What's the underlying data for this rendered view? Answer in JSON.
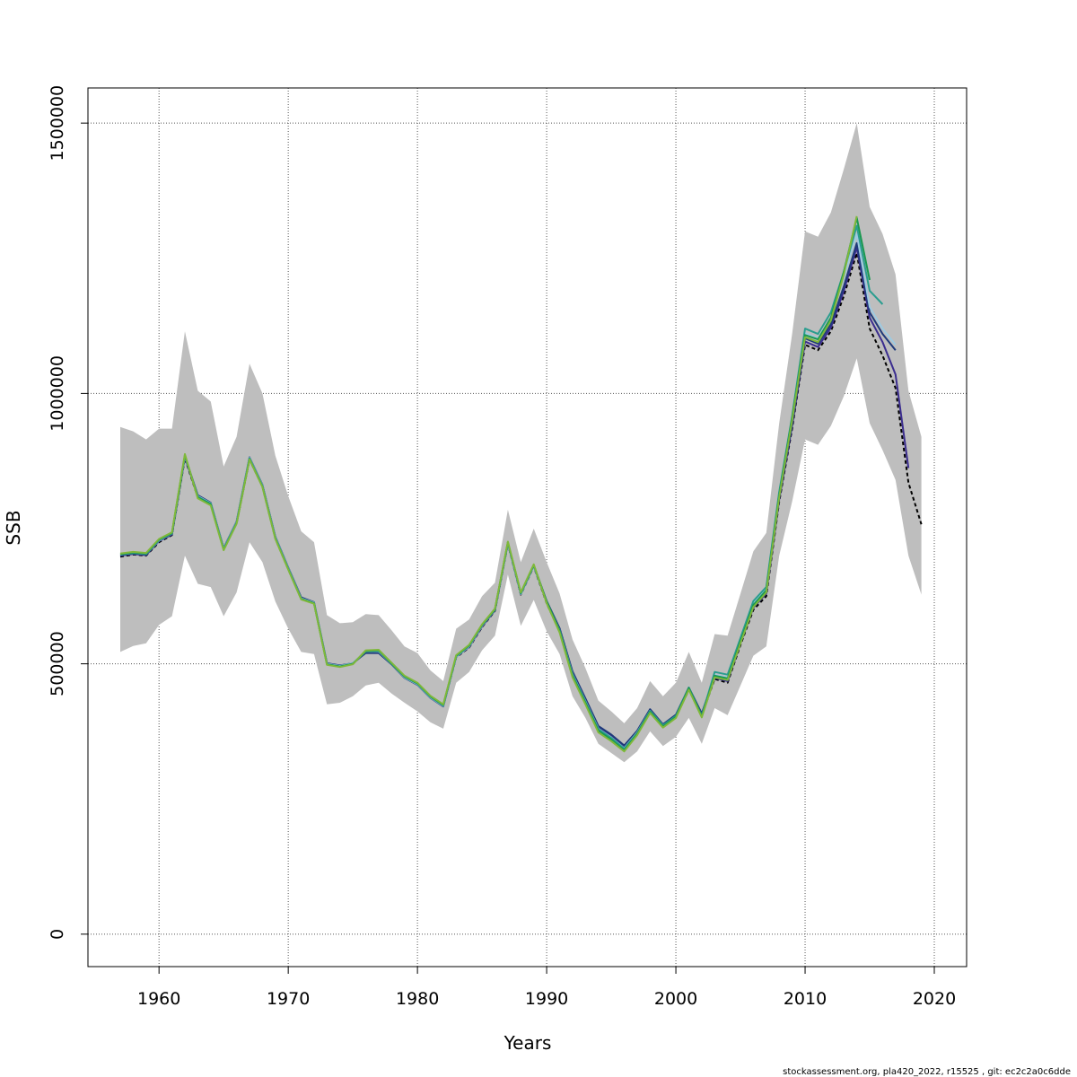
{
  "chart_data": {
    "type": "line",
    "title": "",
    "xlabel": "Years",
    "ylabel": "SSB",
    "xlim": [
      1954.5,
      2022.5
    ],
    "ylim": [
      -60000,
      1565000
    ],
    "x_ticks": [
      1960,
      1970,
      1980,
      1990,
      2000,
      2010,
      2020
    ],
    "y_ticks": [
      0,
      500000,
      1000000,
      1500000
    ],
    "grid": true,
    "legend": "none",
    "footer": "stockassessment.org, pla420_2022, r15525 , git: ec2c2a0c6dde",
    "colors": {
      "band": "#bebebe",
      "black": "#000000",
      "navy": "#1f3a7a",
      "purple": "#3b2d8f",
      "teal": "#2a9d8f",
      "lightblue": "#9ecae1",
      "green": "#1a9850",
      "olive": "#7fb83a"
    },
    "confidence_band": {
      "x": [
        1957,
        1958,
        1959,
        1960,
        1961,
        1962,
        1963,
        1964,
        1965,
        1966,
        1967,
        1968,
        1969,
        1970,
        1971,
        1972,
        1973,
        1974,
        1975,
        1976,
        1977,
        1978,
        1979,
        1980,
        1981,
        1982,
        1983,
        1984,
        1985,
        1986,
        1987,
        1988,
        1989,
        1990,
        1991,
        1992,
        1993,
        1994,
        1995,
        1996,
        1997,
        1998,
        1999,
        2000,
        2001,
        2002,
        2003,
        2004,
        2005,
        2006,
        2007,
        2008,
        2009,
        2010,
        2011,
        2012,
        2013,
        2014,
        2015,
        2016,
        2017,
        2018,
        2019
      ],
      "upper": [
        938000,
        930000,
        915000,
        935000,
        935000,
        1115000,
        1005000,
        985000,
        865000,
        920000,
        1055000,
        1000000,
        885000,
        810000,
        745000,
        725000,
        590000,
        575000,
        577000,
        592000,
        590000,
        562000,
        532000,
        520000,
        488000,
        468000,
        565000,
        582000,
        625000,
        650000,
        785000,
        688000,
        750000,
        688000,
        630000,
        545000,
        492000,
        432000,
        412000,
        390000,
        418000,
        468000,
        440000,
        465000,
        522000,
        465000,
        555000,
        552000,
        630000,
        708000,
        742000,
        945000,
        1110000,
        1300000,
        1290000,
        1335000,
        1415000,
        1500000,
        1345000,
        1295000,
        1220000,
        1005000,
        920000
      ],
      "lower": [
        522000,
        533000,
        538000,
        572000,
        588000,
        700000,
        648000,
        642000,
        588000,
        632000,
        725000,
        688000,
        615000,
        565000,
        522000,
        518000,
        425000,
        428000,
        440000,
        460000,
        465000,
        445000,
        428000,
        412000,
        392000,
        380000,
        465000,
        485000,
        525000,
        552000,
        665000,
        570000,
        618000,
        560000,
        518000,
        440000,
        400000,
        352000,
        335000,
        318000,
        338000,
        375000,
        348000,
        365000,
        400000,
        352000,
        418000,
        405000,
        460000,
        515000,
        532000,
        700000,
        800000,
        915000,
        905000,
        940000,
        995000,
        1065000,
        945000,
        895000,
        840000,
        700000,
        628000
      ]
    },
    "series": [
      {
        "color": "black",
        "dashed": true,
        "x": [
          1957,
          1958,
          1959,
          1960,
          1961,
          1962,
          1963,
          1964,
          1965,
          1966,
          1967,
          1968,
          1969,
          1970,
          1971,
          1972,
          1973,
          1974,
          1975,
          1976,
          1977,
          1978,
          1979,
          1980,
          1981,
          1982,
          1983,
          1984,
          1985,
          1986,
          1987,
          1988,
          1989,
          1990,
          1991,
          1992,
          1993,
          1994,
          1995,
          1996,
          1997,
          1998,
          1999,
          2000,
          2001,
          2002,
          2003,
          2004,
          2005,
          2006,
          2007,
          2008,
          2009,
          2010,
          2011,
          2012,
          2013,
          2014,
          2015,
          2016,
          2017,
          2018,
          2019
        ],
        "values": [
          698000,
          702000,
          700000,
          725000,
          738000,
          880000,
          808000,
          795000,
          712000,
          760000,
          878000,
          828000,
          732000,
          675000,
          620000,
          612000,
          500000,
          495000,
          500000,
          522000,
          522000,
          500000,
          475000,
          462000,
          438000,
          422000,
          512000,
          530000,
          568000,
          598000,
          722000,
          628000,
          680000,
          612000,
          560000,
          480000,
          430000,
          378000,
          362000,
          342000,
          372000,
          412000,
          385000,
          402000,
          452000,
          405000,
          472000,
          465000,
          535000,
          600000,
          625000,
          800000,
          935000,
          1090000,
          1080000,
          1115000,
          1180000,
          1260000,
          1120000,
          1070000,
          1010000,
          835000,
          758000
        ]
      },
      {
        "color": "purple",
        "dashed": false,
        "x": [
          1957,
          1958,
          1959,
          1960,
          1961,
          1962,
          1963,
          1964,
          1965,
          1966,
          1967,
          1968,
          1969,
          1970,
          1971,
          1972,
          1973,
          1974,
          1975,
          1976,
          1977,
          1978,
          1979,
          1980,
          1981,
          1982,
          1983,
          1984,
          1985,
          1986,
          1987,
          1988,
          1989,
          1990,
          1991,
          1992,
          1993,
          1994,
          1995,
          1996,
          1997,
          1998,
          1999,
          2000,
          2001,
          2002,
          2003,
          2004,
          2005,
          2006,
          2007,
          2008,
          2009,
          2010,
          2011,
          2012,
          2013,
          2014,
          2015,
          2016,
          2017,
          2018
        ],
        "values": [
          700000,
          703000,
          701000,
          727000,
          739000,
          882000,
          810000,
          797000,
          713000,
          762000,
          880000,
          830000,
          734000,
          677000,
          622000,
          613000,
          500000,
          496000,
          500000,
          523000,
          523000,
          501000,
          476000,
          463000,
          439000,
          423000,
          513000,
          531000,
          569000,
          599000,
          723000,
          629000,
          681000,
          614000,
          563000,
          483000,
          433000,
          382000,
          366000,
          346000,
          374000,
          414000,
          386000,
          404000,
          454000,
          406000,
          474000,
          468000,
          538000,
          604000,
          630000,
          804000,
          940000,
          1096000,
          1086000,
          1122000,
          1190000,
          1270000,
          1140000,
          1095000,
          1035000,
          862000
        ]
      },
      {
        "color": "navy",
        "dashed": false,
        "x": [
          1957,
          1958,
          1959,
          1960,
          1961,
          1962,
          1963,
          1964,
          1965,
          1966,
          1967,
          1968,
          1969,
          1970,
          1971,
          1972,
          1973,
          1974,
          1975,
          1976,
          1977,
          1978,
          1979,
          1980,
          1981,
          1982,
          1983,
          1984,
          1985,
          1986,
          1987,
          1988,
          1989,
          1990,
          1991,
          1992,
          1993,
          1994,
          1995,
          1996,
          1997,
          1998,
          1999,
          2000,
          2001,
          2002,
          2003,
          2004,
          2005,
          2006,
          2007,
          2008,
          2009,
          2010,
          2011,
          2012,
          2013,
          2014,
          2015,
          2016,
          2017
        ],
        "values": [
          701000,
          704000,
          702000,
          728000,
          740000,
          884000,
          812000,
          798000,
          714000,
          763000,
          882000,
          831000,
          735000,
          678000,
          623000,
          614000,
          501000,
          497000,
          501000,
          520000,
          520000,
          499000,
          474000,
          461000,
          437000,
          421000,
          514000,
          533000,
          571000,
          601000,
          724000,
          630000,
          682000,
          616000,
          566000,
          486000,
          436000,
          385000,
          369000,
          349000,
          376000,
          416000,
          388000,
          406000,
          456000,
          408000,
          477000,
          471000,
          541000,
          607000,
          634000,
          808000,
          945000,
          1102000,
          1092000,
          1128000,
          1198000,
          1278000,
          1150000,
          1110000,
          1080000
        ]
      },
      {
        "color": "lightblue",
        "dashed": false,
        "x": [
          1957,
          1958,
          1959,
          1960,
          1961,
          1962,
          1963,
          1964,
          1965,
          1966,
          1967,
          1968,
          1969,
          1970,
          1971,
          1972,
          1973,
          1974,
          1975,
          1976,
          1977,
          1978,
          1979,
          1980,
          1981,
          1982,
          1983,
          1984,
          1985,
          1986,
          1987,
          1988,
          1989,
          1990,
          1991,
          1992,
          1993,
          1994,
          1995,
          1996,
          1997,
          1998,
          1999,
          2000,
          2001,
          2002,
          2003,
          2004,
          2005,
          2006,
          2007,
          2008,
          2009,
          2010,
          2011,
          2012,
          2013,
          2014,
          2015,
          2016,
          2017
        ],
        "values": [
          702000,
          705000,
          703000,
          728000,
          741000,
          884000,
          810000,
          797000,
          713000,
          762000,
          881000,
          830000,
          734000,
          677000,
          621000,
          613000,
          500000,
          496000,
          501000,
          523000,
          523000,
          500000,
          475000,
          462000,
          438000,
          422000,
          513000,
          532000,
          570000,
          600000,
          723000,
          629000,
          681000,
          614000,
          562000,
          481000,
          431000,
          380000,
          364000,
          344000,
          373000,
          413000,
          386000,
          403000,
          453000,
          404000,
          480000,
          475000,
          545000,
          612000,
          638000,
          815000,
          952000,
          1112000,
          1102000,
          1140000,
          1215000,
          1295000,
          1160000,
          1120000,
          1090000
        ]
      },
      {
        "color": "teal",
        "dashed": false,
        "x": [
          1957,
          1958,
          1959,
          1960,
          1961,
          1962,
          1963,
          1964,
          1965,
          1966,
          1967,
          1968,
          1969,
          1970,
          1971,
          1972,
          1973,
          1974,
          1975,
          1976,
          1977,
          1978,
          1979,
          1980,
          1981,
          1982,
          1983,
          1984,
          1985,
          1986,
          1987,
          1988,
          1989,
          1990,
          1991,
          1992,
          1993,
          1994,
          1995,
          1996,
          1997,
          1998,
          1999,
          2000,
          2001,
          2002,
          2003,
          2004,
          2005,
          2006,
          2007,
          2008,
          2009,
          2010,
          2011,
          2012,
          2013,
          2014,
          2015,
          2016
        ],
        "values": [
          702000,
          705000,
          703000,
          729000,
          741000,
          885000,
          809000,
          796000,
          712000,
          761000,
          880000,
          829000,
          733000,
          676000,
          620000,
          612000,
          499000,
          495000,
          500000,
          523000,
          524000,
          500000,
          476000,
          463000,
          439000,
          423000,
          514000,
          533000,
          571000,
          600000,
          724000,
          630000,
          682000,
          614000,
          562000,
          480000,
          430000,
          379000,
          363000,
          343000,
          372000,
          413000,
          386000,
          404000,
          456000,
          404000,
          485000,
          480000,
          548000,
          616000,
          642000,
          818000,
          958000,
          1120000,
          1110000,
          1150000,
          1225000,
          1310000,
          1190000,
          1165000
        ]
      },
      {
        "color": "green",
        "dashed": false,
        "x": [
          1957,
          1958,
          1959,
          1960,
          1961,
          1962,
          1963,
          1964,
          1965,
          1966,
          1967,
          1968,
          1969,
          1970,
          1971,
          1972,
          1973,
          1974,
          1975,
          1976,
          1977,
          1978,
          1979,
          1980,
          1981,
          1982,
          1983,
          1984,
          1985,
          1986,
          1987,
          1988,
          1989,
          1990,
          1991,
          1992,
          1993,
          1994,
          1995,
          1996,
          1997,
          1998,
          1999,
          2000,
          2001,
          2002,
          2003,
          2004,
          2005,
          2006,
          2007,
          2008,
          2009,
          2010,
          2011,
          2012,
          2013,
          2014,
          2015
        ],
        "values": [
          703000,
          706000,
          704000,
          730000,
          742000,
          886000,
          808000,
          795000,
          711000,
          760000,
          879000,
          828000,
          732000,
          675000,
          620000,
          612000,
          499000,
          495000,
          500000,
          524000,
          525000,
          501000,
          477000,
          464000,
          440000,
          424000,
          515000,
          534000,
          572000,
          601000,
          725000,
          631000,
          683000,
          615000,
          561000,
          478000,
          428000,
          376000,
          360000,
          340000,
          370000,
          411000,
          384000,
          402000,
          455000,
          403000,
          478000,
          473000,
          542000,
          609000,
          636000,
          812000,
          955000,
          1108000,
          1100000,
          1140000,
          1225000,
          1325000,
          1210000
        ]
      },
      {
        "color": "olive",
        "dashed": false,
        "x": [
          1957,
          1958,
          1959,
          1960,
          1961,
          1962,
          1963,
          1964,
          1965,
          1966,
          1967,
          1968,
          1969,
          1970,
          1971,
          1972,
          1973,
          1974,
          1975,
          1976,
          1977,
          1978,
          1979,
          1980,
          1981,
          1982,
          1983,
          1984,
          1985,
          1986,
          1987,
          1988,
          1989,
          1990,
          1991,
          1992,
          1993,
          1994,
          1995,
          1996,
          1997,
          1998,
          1999,
          2000,
          2001,
          2002,
          2003,
          2004,
          2005,
          2006,
          2007,
          2008,
          2009,
          2010,
          2011,
          2012,
          2013,
          2014
        ],
        "values": [
          704000,
          707000,
          705000,
          731000,
          743000,
          888000,
          806000,
          793000,
          710000,
          759000,
          878000,
          827000,
          731000,
          674000,
          619000,
          611000,
          498000,
          494000,
          499000,
          525000,
          526000,
          502000,
          478000,
          465000,
          441000,
          425000,
          516000,
          535000,
          573000,
          602000,
          726000,
          632000,
          684000,
          612000,
          558000,
          475000,
          425000,
          373000,
          357000,
          338000,
          368000,
          409000,
          382000,
          400000,
          452000,
          401000,
          475000,
          470000,
          538000,
          605000,
          632000,
          808000,
          950000,
          1104000,
          1095000,
          1135000,
          1220000,
          1328000
        ]
      }
    ]
  }
}
